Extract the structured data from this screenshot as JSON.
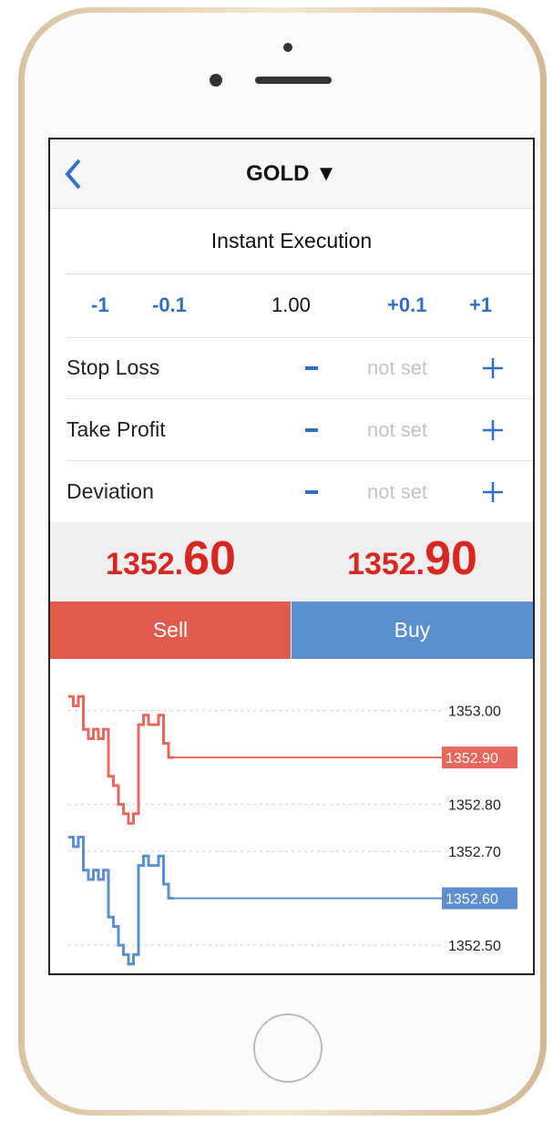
{
  "nav": {
    "title": "GOLD ▼"
  },
  "mode": "Instant Execution",
  "volume": {
    "steps": [
      "-1",
      "-0.1",
      "+0.1",
      "+1"
    ],
    "value": "1.00"
  },
  "fields": [
    {
      "label": "Stop Loss",
      "value": "not set"
    },
    {
      "label": "Take Profit",
      "value": "not set"
    },
    {
      "label": "Deviation",
      "value": "not set"
    }
  ],
  "prices": {
    "sell": {
      "small": "1352.",
      "big": "60"
    },
    "buy": {
      "small": "1352.",
      "big": "90"
    }
  },
  "actions": {
    "sell": "Sell",
    "buy": "Buy"
  },
  "chart": {
    "type": "line",
    "ylim": [
      1352.44,
      1353.11
    ],
    "yticks": [
      {
        "value": 1353.0,
        "label": "1353.00"
      },
      {
        "value": 1352.8,
        "label": "1352.80"
      },
      {
        "value": 1352.7,
        "label": "1352.70"
      },
      {
        "value": 1352.5,
        "label": "1352.50"
      }
    ],
    "series": [
      {
        "color": "#e8675c",
        "values": [
          1353.03,
          1353.01,
          1353.03,
          1352.96,
          1352.94,
          1352.96,
          1352.94,
          1352.96,
          1352.86,
          1352.84,
          1352.8,
          1352.78,
          1352.76,
          1352.78,
          1352.97,
          1352.99,
          1352.97,
          1352.97,
          1352.99,
          1352.93,
          1352.9
        ],
        "current": {
          "value": 1352.9,
          "label": "1352.90"
        }
      },
      {
        "color": "#5b8fd0",
        "values": [
          1352.73,
          1352.71,
          1352.73,
          1352.66,
          1352.64,
          1352.66,
          1352.64,
          1352.66,
          1352.56,
          1352.54,
          1352.5,
          1352.48,
          1352.46,
          1352.48,
          1352.67,
          1352.69,
          1352.67,
          1352.67,
          1352.69,
          1352.63,
          1352.6
        ],
        "current": {
          "value": 1352.6,
          "label": "1352.60"
        }
      }
    ]
  }
}
